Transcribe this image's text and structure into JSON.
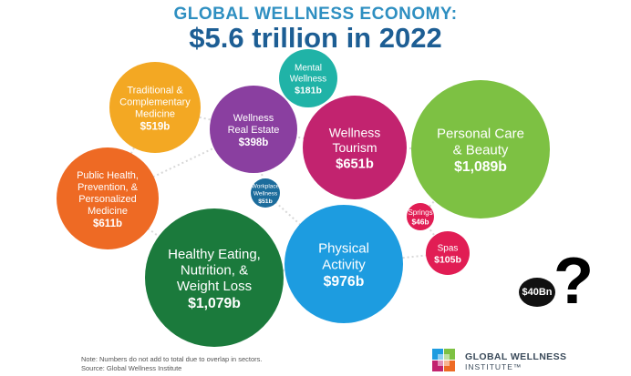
{
  "header": {
    "title": "GLOBAL WELLNESS ECONOMY:",
    "subtitle": "$5.6 trillion in 2022"
  },
  "chart_data": {
    "type": "bubble",
    "title": "GLOBAL WELLNESS ECONOMY: $5.6 trillion in 2022",
    "bubbles": [
      {
        "label": "Traditional & Complementary Medicine",
        "lines": [
          "Traditional &",
          "Complementary",
          "Medicine"
        ],
        "value_label": "$519b",
        "value": 519,
        "color": "#f3a823"
      },
      {
        "label": "Mental Wellness",
        "lines": [
          "Mental",
          "Wellness"
        ],
        "value_label": "$181b",
        "value": 181,
        "color": "#20b3a7"
      },
      {
        "label": "Wellness Real Estate",
        "lines": [
          "Wellness",
          "Real Estate"
        ],
        "value_label": "$398b",
        "value": 398,
        "color": "#8a3fa0"
      },
      {
        "label": "Wellness Tourism",
        "lines": [
          "Wellness",
          "Tourism"
        ],
        "value_label": "$651b",
        "value": 651,
        "color": "#c2236f"
      },
      {
        "label": "Personal Care & Beauty",
        "lines": [
          "Personal Care",
          "& Beauty"
        ],
        "value_label": "$1,089b",
        "value": 1089,
        "color": "#7dc143"
      },
      {
        "label": "Public Health, Prevention, & Personalized Medicine",
        "lines": [
          "Public Health,",
          "Prevention, &",
          "Personalized",
          "Medicine"
        ],
        "value_label": "$611b",
        "value": 611,
        "color": "#ee6a24"
      },
      {
        "label": "Workplace Wellness",
        "lines": [
          "Workplace",
          "Wellness"
        ],
        "value_label": "$51b",
        "value": 51,
        "color": "#1c6c9c"
      },
      {
        "label": "Springs",
        "lines": [
          "Springs"
        ],
        "value_label": "$46b",
        "value": 46,
        "color": "#e11d54"
      },
      {
        "label": "Spas",
        "lines": [
          "Spas"
        ],
        "value_label": "$105b",
        "value": 105,
        "color": "#e11d54"
      },
      {
        "label": "Healthy Eating, Nutrition, & Weight Loss",
        "lines": [
          "Healthy Eating,",
          "Nutrition, &",
          "Weight Loss"
        ],
        "value_label": "$1,079b",
        "value": 1079,
        "color": "#1b7a3c"
      },
      {
        "label": "Physical Activity",
        "lines": [
          "Physical",
          "Activity"
        ],
        "value_label": "$976b",
        "value": 976,
        "color": "#1d9ce0"
      }
    ]
  },
  "annotations": {
    "extra_bubble": "$40Bn",
    "question_mark": "?"
  },
  "footer": {
    "note": "Note: Numbers do not add to total due to overlap in sectors.",
    "source": "Source: Global Wellness Institute",
    "logo_name": "GLOBAL WELLNESS",
    "logo_sub": "INSTITUTE™"
  }
}
